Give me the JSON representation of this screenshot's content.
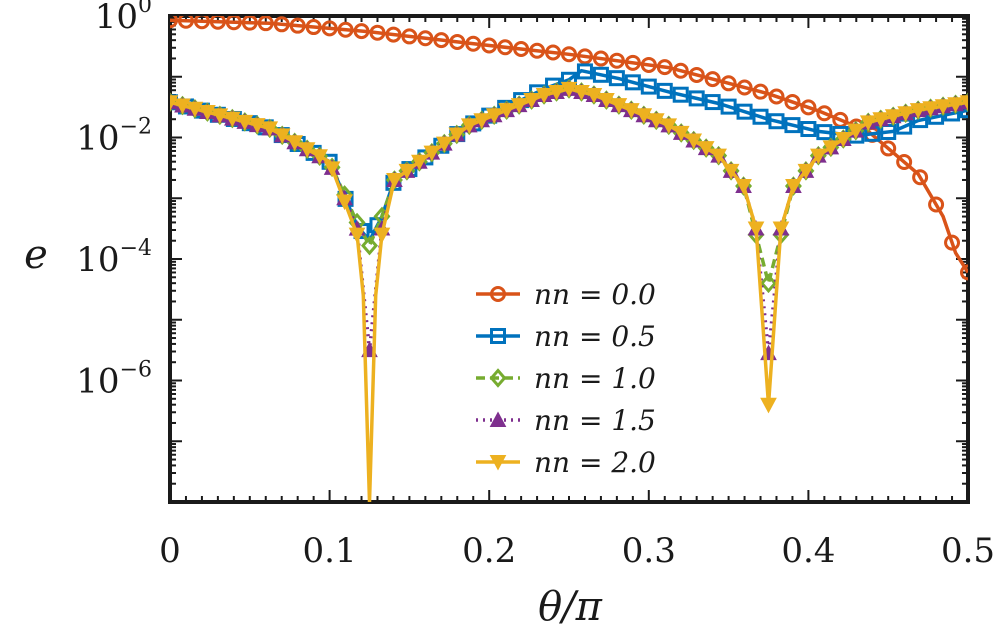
{
  "chart_data": {
    "type": "line",
    "title": "",
    "xlabel": "θ/π",
    "ylabel": "e",
    "yscale": "log",
    "xlim": [
      0,
      0.5
    ],
    "ylim_log10": [
      -8,
      0
    ],
    "x_ticks": [
      {
        "value": 0,
        "label": "0"
      },
      {
        "value": 0.1,
        "label": "0.1"
      },
      {
        "value": 0.2,
        "label": "0.2"
      },
      {
        "value": 0.3,
        "label": "0.3"
      },
      {
        "value": 0.4,
        "label": "0.4"
      },
      {
        "value": 0.5,
        "label": "0.5"
      }
    ],
    "y_ticks": [
      {
        "exp": 0,
        "base": "10",
        "sup": "0"
      },
      {
        "exp": -2,
        "base": "10",
        "sup": "−2"
      },
      {
        "exp": -4,
        "base": "10",
        "sup": "−4"
      },
      {
        "exp": -6,
        "base": "10",
        "sup": "−6"
      }
    ],
    "legend_position": "center",
    "series": [
      {
        "name": "nn = 0.0",
        "color": "#D95319",
        "marker": "circle",
        "line": "solid",
        "note": "log10(e) anchors",
        "anchors": [
          [
            0,
            -0.07
          ],
          [
            0.0625,
            -0.12
          ],
          [
            0.125,
            -0.26
          ],
          [
            0.1875,
            -0.45
          ],
          [
            0.25,
            -0.63
          ],
          [
            0.3125,
            -0.85
          ],
          [
            0.375,
            -1.28
          ],
          [
            0.4062,
            -1.56
          ],
          [
            0.4375,
            -1.9
          ],
          [
            0.4688,
            -2.6
          ],
          [
            0.4844,
            -3.3
          ],
          [
            0.4922,
            -3.9
          ],
          [
            0.5,
            -4.22
          ]
        ]
      },
      {
        "name": "nn = 0.5",
        "color": "#0072BD",
        "marker": "square",
        "line": "solid",
        "anchors": [
          [
            0,
            -1.42
          ],
          [
            0.0625,
            -1.85
          ],
          [
            0.1,
            -2.4
          ],
          [
            0.1172,
            -3.45
          ],
          [
            0.125,
            -3.7
          ],
          [
            0.1328,
            -3.3
          ],
          [
            0.1406,
            -2.7
          ],
          [
            0.1875,
            -1.8
          ],
          [
            0.2344,
            -1.2
          ],
          [
            0.25,
            -1.05
          ],
          [
            0.2578,
            -0.9
          ],
          [
            0.2812,
            -1.03
          ],
          [
            0.3125,
            -1.25
          ],
          [
            0.3438,
            -1.44
          ],
          [
            0.375,
            -1.7
          ],
          [
            0.4062,
            -1.9
          ],
          [
            0.4297,
            -1.97
          ],
          [
            0.4531,
            -1.9
          ],
          [
            0.4688,
            -1.72
          ],
          [
            0.5,
            -1.55
          ]
        ]
      },
      {
        "name": "nn = 1.0",
        "color": "#77AC30",
        "marker": "diamond",
        "line": "dashed",
        "anchors": [
          [
            0,
            -1.42
          ],
          [
            0.0625,
            -1.85
          ],
          [
            0.1,
            -2.4
          ],
          [
            0.1172,
            -3.4
          ],
          [
            0.125,
            -3.78
          ],
          [
            0.1328,
            -3.3
          ],
          [
            0.1406,
            -2.7
          ],
          [
            0.1875,
            -1.8
          ],
          [
            0.2344,
            -1.3
          ],
          [
            0.25,
            -1.2
          ],
          [
            0.2656,
            -1.3
          ],
          [
            0.3125,
            -1.8
          ],
          [
            0.3438,
            -2.3
          ],
          [
            0.3594,
            -2.8
          ],
          [
            0.375,
            -4.4
          ],
          [
            0.3906,
            -2.8
          ],
          [
            0.4062,
            -2.3
          ],
          [
            0.4375,
            -1.75
          ],
          [
            0.4688,
            -1.55
          ],
          [
            0.5,
            -1.42
          ]
        ]
      },
      {
        "name": "nn = 1.5",
        "color": "#7E2F8E",
        "marker": "triangle-up",
        "line": "dotted",
        "anchors": [
          [
            0,
            -1.42
          ],
          [
            0.0625,
            -1.85
          ],
          [
            0.1,
            -2.4
          ],
          [
            0.1172,
            -3.5
          ],
          [
            0.125,
            -5.5
          ],
          [
            0.1328,
            -3.5
          ],
          [
            0.1406,
            -2.7
          ],
          [
            0.1875,
            -1.8
          ],
          [
            0.2344,
            -1.3
          ],
          [
            0.25,
            -1.2
          ],
          [
            0.2656,
            -1.3
          ],
          [
            0.3125,
            -1.8
          ],
          [
            0.3438,
            -2.3
          ],
          [
            0.3594,
            -2.8
          ],
          [
            0.3672,
            -3.5
          ],
          [
            0.375,
            -5.55
          ],
          [
            0.3828,
            -3.5
          ],
          [
            0.3906,
            -2.8
          ],
          [
            0.4062,
            -2.3
          ],
          [
            0.4375,
            -1.75
          ],
          [
            0.4688,
            -1.55
          ],
          [
            0.5,
            -1.42
          ]
        ]
      },
      {
        "name": "nn = 2.0",
        "color": "#EDB120",
        "marker": "triangle-down",
        "line": "solid",
        "anchors": [
          [
            0,
            -1.42
          ],
          [
            0.0625,
            -1.85
          ],
          [
            0.1,
            -2.4
          ],
          [
            0.1172,
            -3.6
          ],
          [
            0.1211,
            -4.6
          ],
          [
            0.125,
            -8.0
          ],
          [
            0.1289,
            -4.6
          ],
          [
            0.1328,
            -3.6
          ],
          [
            0.1406,
            -2.7
          ],
          [
            0.1875,
            -1.8
          ],
          [
            0.2344,
            -1.3
          ],
          [
            0.25,
            -1.2
          ],
          [
            0.2656,
            -1.3
          ],
          [
            0.3125,
            -1.8
          ],
          [
            0.3438,
            -2.3
          ],
          [
            0.3594,
            -2.8
          ],
          [
            0.3672,
            -3.5
          ],
          [
            0.375,
            -6.4
          ],
          [
            0.3828,
            -3.5
          ],
          [
            0.3906,
            -2.8
          ],
          [
            0.4062,
            -2.3
          ],
          [
            0.4375,
            -1.75
          ],
          [
            0.4688,
            -1.55
          ],
          [
            0.5,
            -1.42
          ]
        ]
      }
    ],
    "marker_counts": [
      51,
      51,
      65,
      65,
      65
    ]
  }
}
